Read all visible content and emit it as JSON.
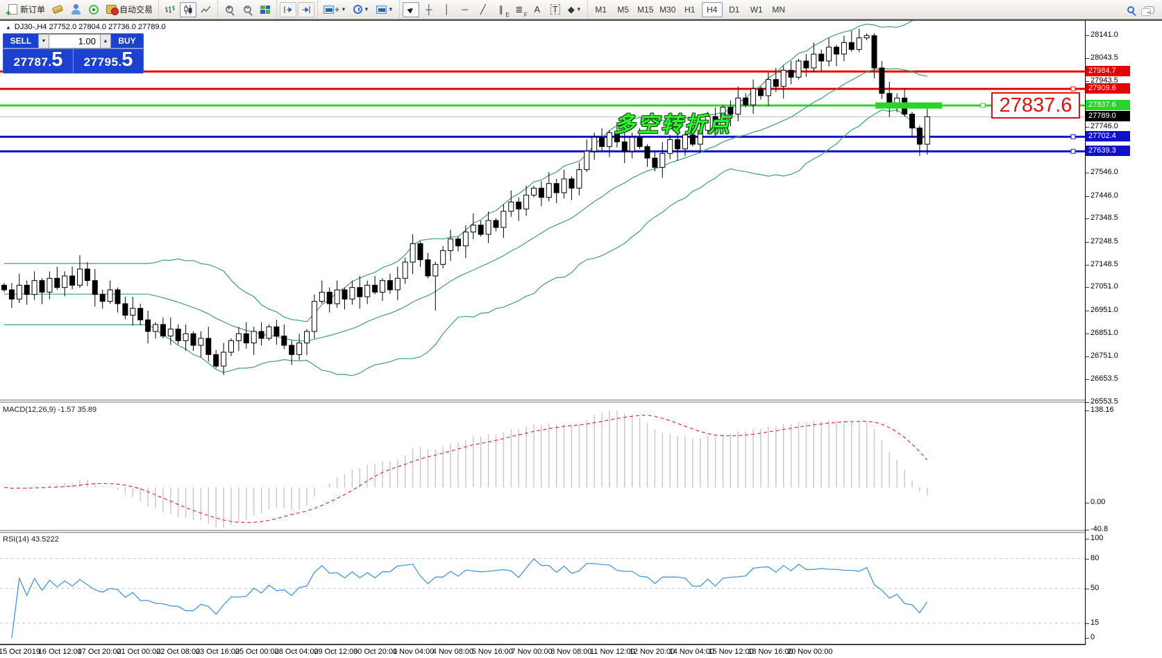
{
  "toolbar": {
    "new_order": "新订单",
    "auto_trading": "自动交易",
    "timeframes": [
      "M1",
      "M5",
      "M15",
      "M30",
      "H1",
      "H4",
      "D1",
      "W1",
      "MN"
    ],
    "active_timeframe": "H4",
    "text_tool": "A",
    "label_tool": "T",
    "channel_sub": "E",
    "fibo_sub": "F"
  },
  "symbol_bar": {
    "collapse": "▲",
    "text": "DJ30-,H4  27752.0 27804.0 27736.0 27789.0"
  },
  "trade_panel": {
    "sell_label": "SELL",
    "buy_label": "BUY",
    "volume": "1.00",
    "sell_price_main": "27787",
    "sell_price_big": "5",
    "buy_price_main": "27795",
    "buy_price_big": "5",
    "spin_down": "▼",
    "spin_up": "▲"
  },
  "annotation": {
    "text": "多空转折点",
    "color": "#2cf32c"
  },
  "price_tag": {
    "text": "27837.6"
  },
  "indicators": {
    "macd_label": "MACD(12,26,9) -1.57 35.89",
    "rsi_label": "RSI(14) 43.5222"
  },
  "levels": [
    {
      "price": 27984.7,
      "label": "27984.7",
      "color": "#e60000",
      "width": 3,
      "badge": "#e60000",
      "markers": []
    },
    {
      "price": 27909.6,
      "label": "27909.6",
      "color": "#e60000",
      "width": 3,
      "badge": "#e60000",
      "markers": [
        1546
      ]
    },
    {
      "price": 27837.6,
      "label": "27837.6",
      "color": "#2bd42b",
      "width": 3,
      "badge": "#2bd42b",
      "markers": [
        1416,
        1546
      ],
      "thick_from": 1261,
      "thick_to": 1357
    },
    {
      "price": 27789.0,
      "label": "27789.0",
      "color": "#b8b8b8",
      "width": 1,
      "badge": "#000000",
      "markers": []
    },
    {
      "price": 27702.4,
      "label": "27702.4",
      "color": "#1010cc",
      "width": 3,
      "badge": "#1010cc",
      "markers": [
        1546
      ]
    },
    {
      "price": 27639.3,
      "label": "27639.3",
      "color": "#1010cc",
      "width": 3,
      "badge": "#1010cc",
      "markers": [
        1546
      ]
    }
  ],
  "axis": {
    "main_ticks": [
      28141.0,
      28043.5,
      27943.5,
      27746.0,
      27546.0,
      27446.0,
      27348.5,
      27248.5,
      27148.5,
      27051.0,
      26951.0,
      26851.0,
      26751.0,
      26653.5,
      26553.5
    ],
    "macd_ticks": [
      {
        "label": "138.16",
        "value": 138.16
      },
      {
        "label": "0.00",
        "value": 0
      },
      {
        "label": "-40.8",
        "value": -40.8
      }
    ],
    "rsi_ticks": [
      {
        "label": "100",
        "value": 100
      },
      {
        "label": "80",
        "value": 80
      },
      {
        "label": "50",
        "value": 50
      },
      {
        "label": "15",
        "value": 15
      },
      {
        "label": "0",
        "value": 0
      }
    ],
    "rsi_dashed_levels": [
      80,
      50,
      15
    ]
  },
  "time_axis": [
    "15 Oct 2019",
    "16 Oct 12:00",
    "17 Oct 20:00",
    "21 Oct 00:00",
    "22 Oct 08:00",
    "23 Oct 16:00",
    "25 Oct 00:00",
    "28 Oct 04:00",
    "29 Oct 12:00",
    "30 Oct 20:00",
    "1 Nov 04:00",
    "4 Nov 08:00",
    "5 Nov 16:00",
    "7 Nov 00:00",
    "8 Nov 08:00",
    "11 Nov 12:00",
    "12 Nov 20:00",
    "14 Nov 04:00",
    "15 Nov 12:00",
    "18 Nov 16:00",
    "20 Nov 00:00"
  ],
  "chart": {
    "closes": [
      27040,
      27000,
      27060,
      27020,
      27080,
      27030,
      27090,
      27050,
      27100,
      27060,
      27130,
      27080,
      27020,
      26990,
      27040,
      26980,
      26930,
      26960,
      26910,
      26860,
      26890,
      26840,
      26870,
      26820,
      26850,
      26800,
      26830,
      26760,
      26710,
      26770,
      26820,
      26850,
      26810,
      26860,
      26830,
      26880,
      26840,
      26800,
      26760,
      26810,
      26860,
      26990,
      27030,
      26980,
      27040,
      27000,
      27050,
      27010,
      27060,
      27030,
      27080,
      27040,
      27090,
      27160,
      27240,
      27170,
      27100,
      27150,
      27210,
      27260,
      27230,
      27290,
      27320,
      27280,
      27340,
      27310,
      27380,
      27420,
      27390,
      27450,
      27480,
      27440,
      27500,
      27460,
      27520,
      27480,
      27560,
      27640,
      27700,
      27660,
      27720,
      27680,
      27640,
      27700,
      27660,
      27610,
      27570,
      27630,
      27690,
      27650,
      27710,
      27670,
      27730,
      27790,
      27750,
      27830,
      27800,
      27870,
      27840,
      27910,
      27880,
      27950,
      27920,
      27990,
      27960,
      28030,
      28000,
      28060,
      28030,
      28090,
      28060,
      28110,
      28080,
      28130,
      28140,
      28000,
      27890,
      27840,
      27870,
      27800,
      27740,
      27670,
      27789
    ],
    "bollinger_period": 20,
    "bollinger_dev": 2
  },
  "colors": {
    "boll_green": "#3f9e71",
    "macd_hist": "#c6c6c6",
    "macd_signal": "#d83030",
    "rsi_blue": "#4595dc",
    "panel_blue": "#1d41cf"
  }
}
